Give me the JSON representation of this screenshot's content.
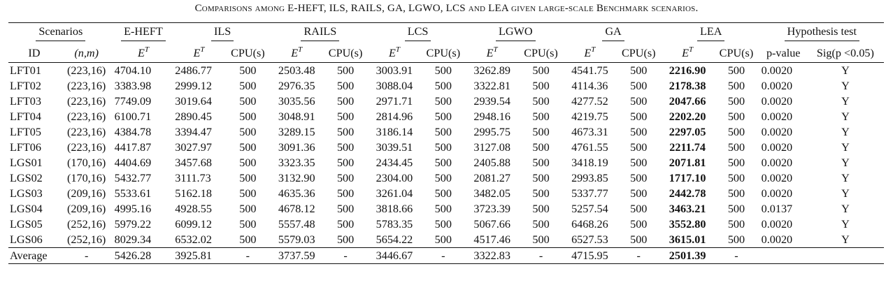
{
  "caption": "Comparisons among E-HEFT, ILS, RAILS, GA, LGWO, LCS and LEA given large-scale Benchmark scenarios.",
  "header_groups": {
    "scenarios": "Scenarios",
    "eheft": "E-HEFT",
    "ils": "ILS",
    "rails": "RAILS",
    "lcs": "LCS",
    "lgwo": "LGWO",
    "ga": "GA",
    "lea": "LEA",
    "hypothesis": "Hypothesis test"
  },
  "sub_headers": {
    "id": "ID",
    "nm": "(n,m)",
    "et_base": "E",
    "et_sup": "T",
    "cpu": "CPU(s)",
    "pvalue": "p-value",
    "sig": "Sig(p <0.05)"
  },
  "rows": [
    {
      "id": "LFT01",
      "nm": "(223,16)",
      "eheft": "4704.10",
      "ils": "2486.77",
      "ils_cpu": "500",
      "rails": "2503.48",
      "rails_cpu": "500",
      "lcs": "3003.91",
      "lcs_cpu": "500",
      "lgwo": "3262.89",
      "lgwo_cpu": "500",
      "ga": "4541.75",
      "ga_cpu": "500",
      "lea": "2216.90",
      "lea_cpu": "500",
      "p": "0.0020",
      "sig": "Y"
    },
    {
      "id": "LFT02",
      "nm": "(223,16)",
      "eheft": "3383.98",
      "ils": "2999.12",
      "ils_cpu": "500",
      "rails": "2976.35",
      "rails_cpu": "500",
      "lcs": "3088.04",
      "lcs_cpu": "500",
      "lgwo": "3322.81",
      "lgwo_cpu": "500",
      "ga": "4114.36",
      "ga_cpu": "500",
      "lea": "2178.38",
      "lea_cpu": "500",
      "p": "0.0020",
      "sig": "Y"
    },
    {
      "id": "LFT03",
      "nm": "(223,16)",
      "eheft": "7749.09",
      "ils": "3019.64",
      "ils_cpu": "500",
      "rails": "3035.56",
      "rails_cpu": "500",
      "lcs": "2971.71",
      "lcs_cpu": "500",
      "lgwo": "2939.54",
      "lgwo_cpu": "500",
      "ga": "4277.52",
      "ga_cpu": "500",
      "lea": "2047.66",
      "lea_cpu": "500",
      "p": "0.0020",
      "sig": "Y"
    },
    {
      "id": "LFT04",
      "nm": "(223,16)",
      "eheft": "6100.71",
      "ils": "2890.45",
      "ils_cpu": "500",
      "rails": "3048.91",
      "rails_cpu": "500",
      "lcs": "2814.96",
      "lcs_cpu": "500",
      "lgwo": "2948.16",
      "lgwo_cpu": "500",
      "ga": "4219.75",
      "ga_cpu": "500",
      "lea": "2202.20",
      "lea_cpu": "500",
      "p": "0.0020",
      "sig": "Y"
    },
    {
      "id": "LFT05",
      "nm": "(223,16)",
      "eheft": "4384.78",
      "ils": "3394.47",
      "ils_cpu": "500",
      "rails": "3289.15",
      "rails_cpu": "500",
      "lcs": "3186.14",
      "lcs_cpu": "500",
      "lgwo": "2995.75",
      "lgwo_cpu": "500",
      "ga": "4673.31",
      "ga_cpu": "500",
      "lea": "2297.05",
      "lea_cpu": "500",
      "p": "0.0020",
      "sig": "Y"
    },
    {
      "id": "LFT06",
      "nm": "(223,16)",
      "eheft": "4417.87",
      "ils": "3027.97",
      "ils_cpu": "500",
      "rails": "3091.36",
      "rails_cpu": "500",
      "lcs": "3039.51",
      "lcs_cpu": "500",
      "lgwo": "3127.08",
      "lgwo_cpu": "500",
      "ga": "4761.55",
      "ga_cpu": "500",
      "lea": "2211.74",
      "lea_cpu": "500",
      "p": "0.0020",
      "sig": "Y"
    },
    {
      "id": "LGS01",
      "nm": "(170,16)",
      "eheft": "4404.69",
      "ils": "3457.68",
      "ils_cpu": "500",
      "rails": "3323.35",
      "rails_cpu": "500",
      "lcs": "2434.45",
      "lcs_cpu": "500",
      "lgwo": "2405.88",
      "lgwo_cpu": "500",
      "ga": "3418.19",
      "ga_cpu": "500",
      "lea": "2071.81",
      "lea_cpu": "500",
      "p": "0.0020",
      "sig": "Y"
    },
    {
      "id": "LGS02",
      "nm": "(170,16)",
      "eheft": "5432.77",
      "ils": "3111.73",
      "ils_cpu": "500",
      "rails": "3132.90",
      "rails_cpu": "500",
      "lcs": "2304.00",
      "lcs_cpu": "500",
      "lgwo": "2081.27",
      "lgwo_cpu": "500",
      "ga": "2993.85",
      "ga_cpu": "500",
      "lea": "1717.10",
      "lea_cpu": "500",
      "p": "0.0020",
      "sig": "Y"
    },
    {
      "id": "LGS03",
      "nm": "(209,16)",
      "eheft": "5533.61",
      "ils": "5162.18",
      "ils_cpu": "500",
      "rails": "4635.36",
      "rails_cpu": "500",
      "lcs": "3261.04",
      "lcs_cpu": "500",
      "lgwo": "3482.05",
      "lgwo_cpu": "500",
      "ga": "5337.77",
      "ga_cpu": "500",
      "lea": "2442.78",
      "lea_cpu": "500",
      "p": "0.0020",
      "sig": "Y"
    },
    {
      "id": "LGS04",
      "nm": "(209,16)",
      "eheft": "4995.16",
      "ils": "4928.55",
      "ils_cpu": "500",
      "rails": "4678.12",
      "rails_cpu": "500",
      "lcs": "3818.66",
      "lcs_cpu": "500",
      "lgwo": "3723.39",
      "lgwo_cpu": "500",
      "ga": "5257.54",
      "ga_cpu": "500",
      "lea": "3463.21",
      "lea_cpu": "500",
      "p": "0.0137",
      "sig": "Y"
    },
    {
      "id": "LGS05",
      "nm": "(252,16)",
      "eheft": "5979.22",
      "ils": "6099.12",
      "ils_cpu": "500",
      "rails": "5557.48",
      "rails_cpu": "500",
      "lcs": "5783.35",
      "lcs_cpu": "500",
      "lgwo": "5067.66",
      "lgwo_cpu": "500",
      "ga": "6468.26",
      "ga_cpu": "500",
      "lea": "3552.80",
      "lea_cpu": "500",
      "p": "0.0020",
      "sig": "Y"
    },
    {
      "id": "LGS06",
      "nm": "(252,16)",
      "eheft": "8029.34",
      "ils": "6532.02",
      "ils_cpu": "500",
      "rails": "5579.03",
      "rails_cpu": "500",
      "lcs": "5654.22",
      "lcs_cpu": "500",
      "lgwo": "4517.46",
      "lgwo_cpu": "500",
      "ga": "6527.53",
      "ga_cpu": "500",
      "lea": "3615.01",
      "lea_cpu": "500",
      "p": "0.0020",
      "sig": "Y"
    }
  ],
  "average": {
    "label": "Average",
    "nm": "-",
    "eheft": "5426.28",
    "ils": "3925.81",
    "ils_cpu": "-",
    "rails": "3737.59",
    "rails_cpu": "-",
    "lcs": "3446.67",
    "lcs_cpu": "-",
    "lgwo": "3322.83",
    "lgwo_cpu": "-",
    "ga": "4715.95",
    "ga_cpu": "-",
    "lea": "2501.39",
    "lea_cpu": "-",
    "p": "",
    "sig": ""
  }
}
